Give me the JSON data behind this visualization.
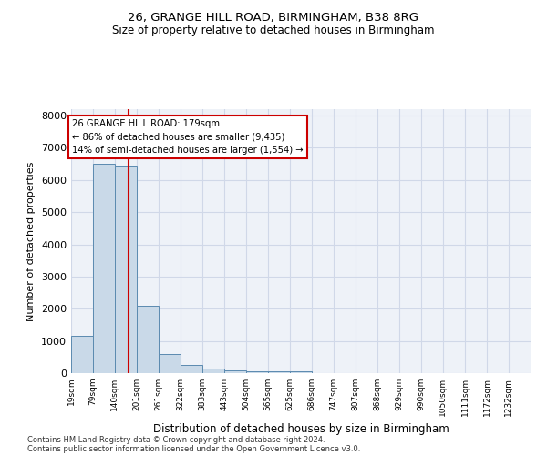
{
  "title1": "26, GRANGE HILL ROAD, BIRMINGHAM, B38 8RG",
  "title2": "Size of property relative to detached houses in Birmingham",
  "xlabel": "Distribution of detached houses by size in Birmingham",
  "ylabel": "Number of detached properties",
  "footnote1": "Contains HM Land Registry data © Crown copyright and database right 2024.",
  "footnote2": "Contains public sector information licensed under the Open Government Licence v3.0.",
  "annotation_line1": "26 GRANGE HILL ROAD: 179sqm",
  "annotation_line2": "← 86% of detached houses are smaller (9,435)",
  "annotation_line3": "14% of semi-detached houses are larger (1,554) →",
  "bar_color": "#c9d9e8",
  "bar_edge_color": "#5b8ab0",
  "red_line_x": 179,
  "annotation_box_color": "#cc0000",
  "categories": [
    "19sqm",
    "79sqm",
    "140sqm",
    "201sqm",
    "261sqm",
    "322sqm",
    "383sqm",
    "443sqm",
    "504sqm",
    "565sqm",
    "625sqm",
    "686sqm",
    "747sqm",
    "807sqm",
    "868sqm",
    "929sqm",
    "990sqm",
    "1050sqm",
    "1111sqm",
    "1172sqm",
    "1232sqm"
  ],
  "bin_edges": [
    19,
    79,
    140,
    201,
    261,
    322,
    383,
    443,
    504,
    565,
    625,
    686,
    747,
    807,
    868,
    929,
    990,
    1050,
    1111,
    1172,
    1232
  ],
  "bin_width": 61,
  "values": [
    1150,
    6500,
    6450,
    2100,
    600,
    250,
    150,
    80,
    55,
    50,
    50,
    12,
    5,
    3,
    2,
    1,
    1,
    0,
    0,
    0,
    0
  ],
  "ylim": [
    0,
    8200
  ],
  "yticks": [
    0,
    1000,
    2000,
    3000,
    4000,
    5000,
    6000,
    7000,
    8000
  ],
  "grid_color": "#d0d8e8",
  "bg_color": "#eef2f8"
}
